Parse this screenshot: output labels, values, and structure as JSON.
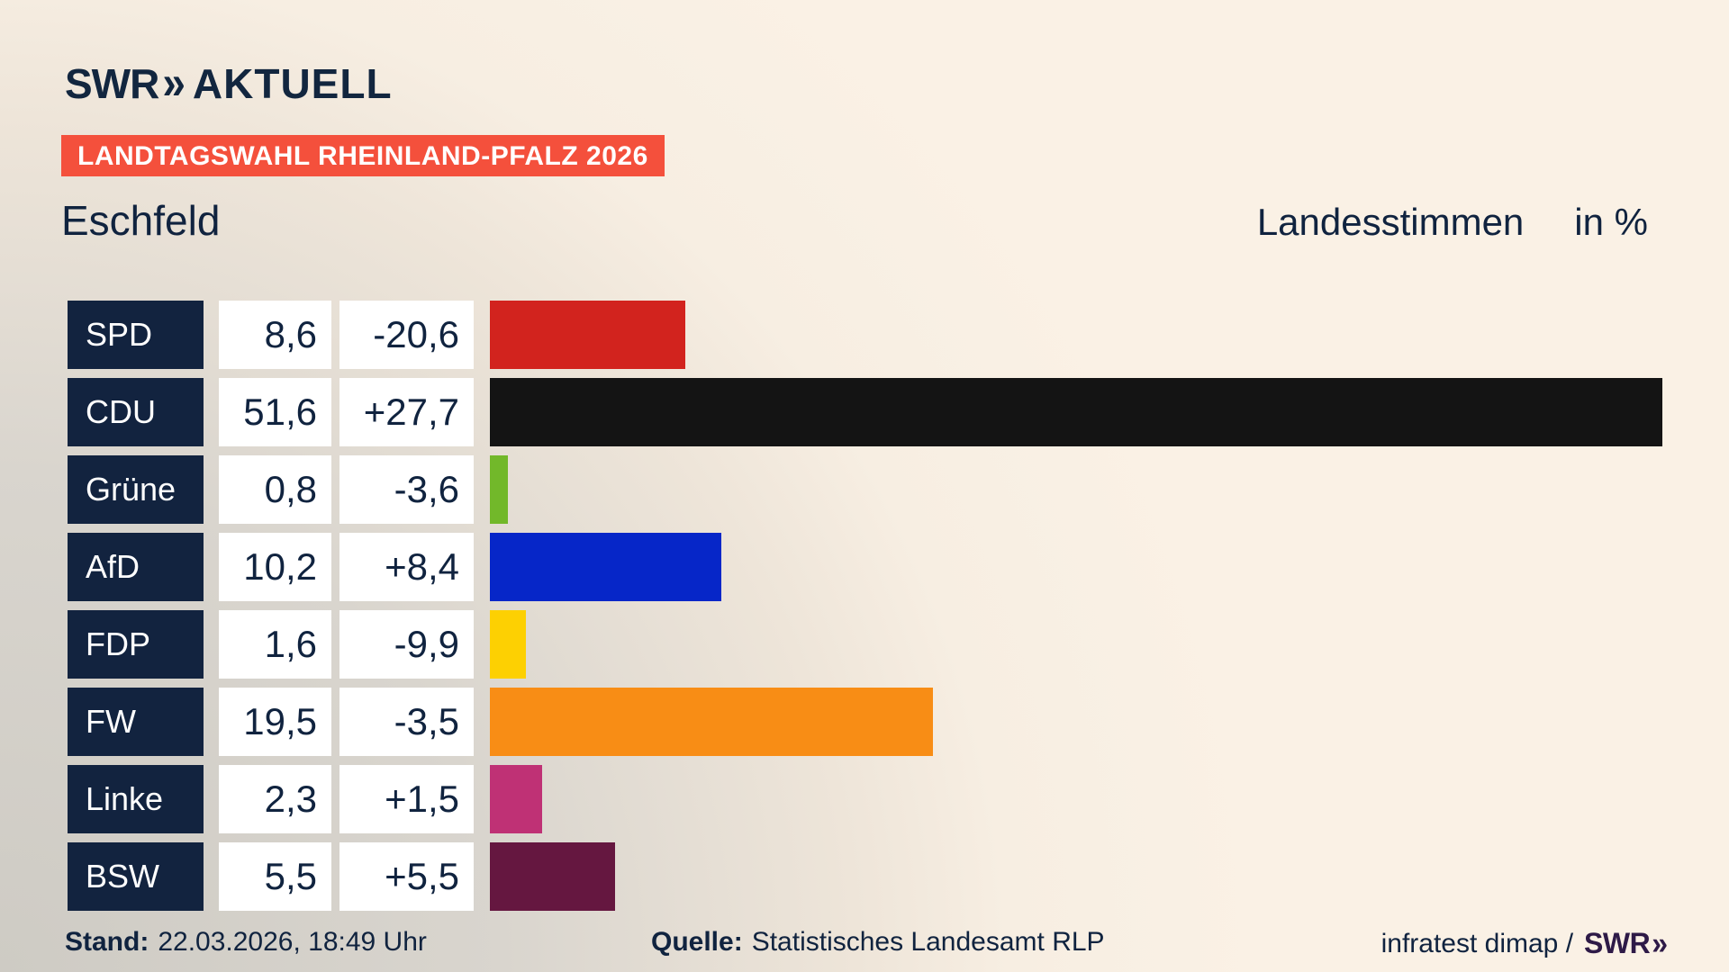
{
  "header": {
    "logo_text": "SWR",
    "logo_chevrons": "»",
    "logo_suffix": "AKTUELL",
    "banner": "LANDTAGSWAHL RHEINLAND-PFALZ 2026",
    "region": "Eschfeld",
    "measure": "Landesstimmen",
    "unit": "in %"
  },
  "chart_data": {
    "type": "bar",
    "orientation": "horizontal",
    "title": "Eschfeld",
    "subtitle": "Landesstimmen in %",
    "xlim": [
      0,
      51.6
    ],
    "grid": false,
    "legend": false,
    "rows": [
      {
        "party": "SPD",
        "value": 8.6,
        "value_label": "8,6",
        "change": -20.6,
        "change_label": "-20,6",
        "color": "#d2231e"
      },
      {
        "party": "CDU",
        "value": 51.6,
        "value_label": "51,6",
        "change": 27.7,
        "change_label": "+27,7",
        "color": "#141414"
      },
      {
        "party": "Grüne",
        "value": 0.8,
        "value_label": "0,8",
        "change": -3.6,
        "change_label": "-3,6",
        "color": "#72b82a"
      },
      {
        "party": "AfD",
        "value": 10.2,
        "value_label": "10,2",
        "change": 8.4,
        "change_label": "+8,4",
        "color": "#0626c8"
      },
      {
        "party": "FDP",
        "value": 1.6,
        "value_label": "1,6",
        "change": -9.9,
        "change_label": "-9,9",
        "color": "#fdd002"
      },
      {
        "party": "FW",
        "value": 19.5,
        "value_label": "19,5",
        "change": -3.5,
        "change_label": "-3,5",
        "color": "#f88d15"
      },
      {
        "party": "Linke",
        "value": 2.3,
        "value_label": "2,3",
        "change": 1.5,
        "change_label": "+1,5",
        "color": "#bf3175"
      },
      {
        "party": "BSW",
        "value": 5.5,
        "value_label": "5,5",
        "change": 5.5,
        "change_label": "+5,5",
        "color": "#651740"
      }
    ]
  },
  "footer": {
    "stand_label": "Stand:",
    "stand_value": "22.03.2026, 18:49 Uhr",
    "quelle_label": "Quelle:",
    "quelle_value": "Statistisches Landesamt RLP",
    "credit_text": "infratest dimap /",
    "credit_logo": "SWR",
    "credit_logo_chevrons": "»"
  },
  "colors": {
    "navy_text": "#10233f",
    "party_cell_bg": "#12233f",
    "banner_bg": "#f4503c",
    "value_cell_bg": "#ffffff",
    "footer_logo": "#2e1a47",
    "background_top": "#faf1e5",
    "background_bottom_left": "#cecbc4"
  }
}
